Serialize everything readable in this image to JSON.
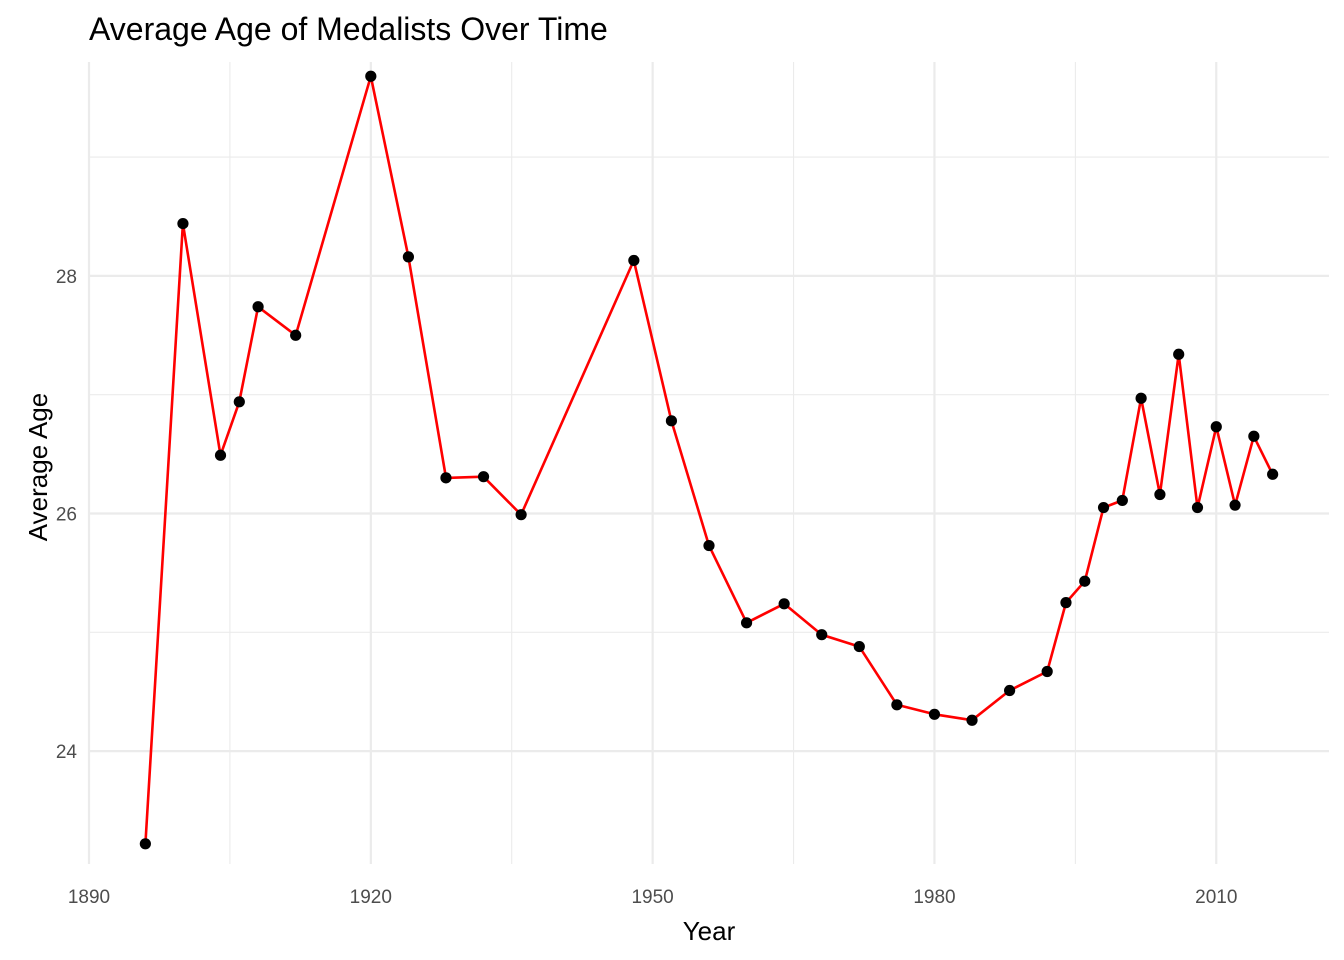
{
  "chart_data": {
    "type": "line",
    "title": "Average Age of Medalists Over Time",
    "xlabel": "Year",
    "ylabel": "Average Age",
    "xlim": [
      1890,
      2022
    ],
    "ylim": [
      23.05,
      29.8
    ],
    "x_ticks": [
      1890,
      1920,
      1950,
      1980,
      2010
    ],
    "x_tick_labels": [
      "1890",
      "1920",
      "1950",
      "1980",
      "2010"
    ],
    "x_minor_ticks": [
      1905,
      1935,
      1965,
      1995
    ],
    "y_ticks": [
      24,
      26,
      28
    ],
    "y_tick_labels": [
      "24",
      "26",
      "28"
    ],
    "y_minor_ticks": [
      25,
      27,
      29
    ],
    "grid": true,
    "legend": "none",
    "colors": {
      "line": "#ff0000",
      "point": "#000000",
      "grid": "#ebebeb"
    },
    "x": [
      1896,
      1900,
      1904,
      1906,
      1908,
      1912,
      1920,
      1924,
      1928,
      1932,
      1936,
      1948,
      1952,
      1956,
      1960,
      1964,
      1968,
      1972,
      1976,
      1980,
      1984,
      1988,
      1992,
      1994,
      1996,
      1998,
      2000,
      2002,
      2004,
      2006,
      2008,
      2010,
      2012,
      2014,
      2016
    ],
    "y": [
      23.22,
      28.44,
      26.49,
      26.94,
      27.74,
      27.5,
      29.68,
      28.16,
      26.3,
      26.31,
      25.99,
      28.13,
      26.78,
      25.73,
      25.08,
      25.24,
      24.98,
      24.88,
      24.39,
      24.31,
      24.26,
      24.51,
      24.67,
      25.25,
      25.43,
      26.05,
      26.11,
      26.97,
      26.16,
      27.34,
      26.05,
      26.73,
      26.07,
      26.65,
      26.33
    ]
  }
}
